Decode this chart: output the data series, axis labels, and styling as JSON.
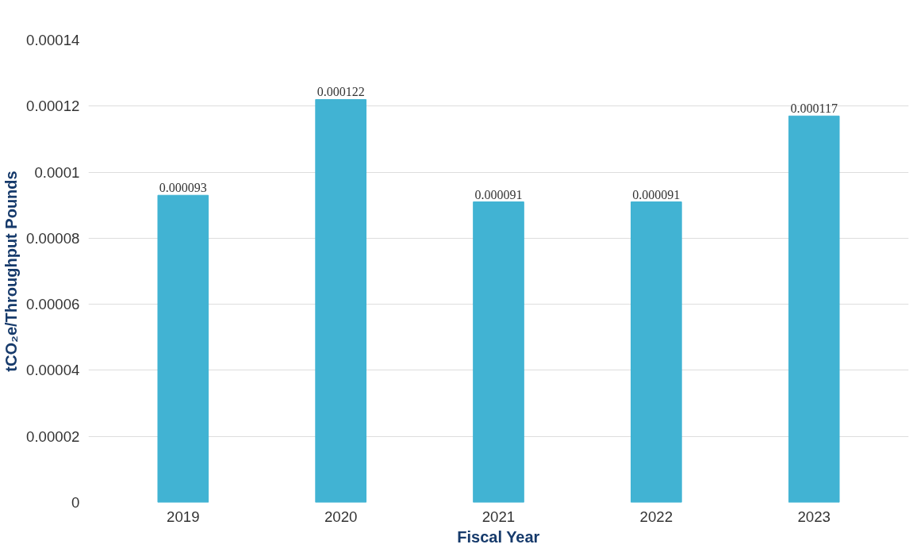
{
  "chart_data": {
    "type": "bar",
    "xlabel": "Fiscal Year",
    "ylabel": "tCO₂e/Throughput Pounds",
    "categories": [
      "2019",
      "2020",
      "2021",
      "2022",
      "2023"
    ],
    "values": [
      9.3e-05,
      0.000122,
      9.1e-05,
      9.1e-05,
      0.000117
    ],
    "value_labels": [
      "0.000093",
      "0.000122",
      "0.000091",
      "0.000091",
      "0.000117"
    ],
    "color": "#41b3d3",
    "ylim": [
      0,
      0.00014
    ],
    "yticks": [
      {
        "value": 0,
        "label": "0"
      },
      {
        "value": 2e-05,
        "label": "0.00002"
      },
      {
        "value": 4e-05,
        "label": "0.00004"
      },
      {
        "value": 6e-05,
        "label": "0.00006"
      },
      {
        "value": 8e-05,
        "label": "0.00008"
      },
      {
        "value": 0.0001,
        "label": "0.0001"
      },
      {
        "value": 0.00012,
        "label": "0.00012"
      },
      {
        "value": 0.00014,
        "label": "0.00014"
      }
    ],
    "grid": "y"
  }
}
